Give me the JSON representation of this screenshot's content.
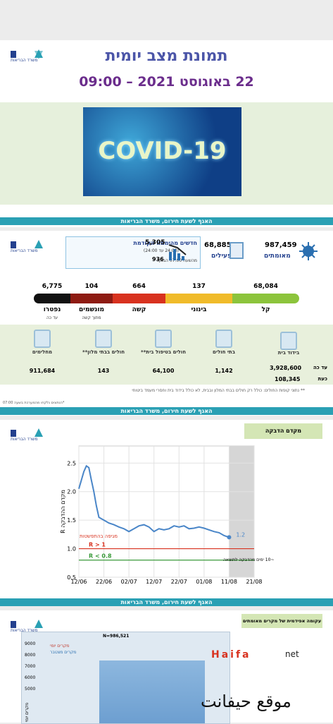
{
  "slide1": {
    "title": "תמונת מצב יומית",
    "date": "22 באוגוסט 2021 – 09:00",
    "image_text": "COVID-19",
    "footer": "האגף לשעת חירום, משרד הבריאות"
  },
  "logo": "משרד הבריאות",
  "slide2": {
    "confirmed": {
      "value": "987,459",
      "label": "מאומתים"
    },
    "active": {
      "value": "68,885",
      "label": "פעילים"
    },
    "new": {
      "value": "5,305",
      "label": "חדשים מהיממה הקודמת",
      "sub": "(24:00 עד 24:00)",
      "morning_value": "936",
      "morning_label": "מהשעה 07:00 הבוקר"
    },
    "severity": [
      {
        "value": "6,775",
        "label": "נפטרו",
        "sub": "עד כה",
        "color": "#111111"
      },
      {
        "value": "104",
        "label": "מונשמים",
        "sub": "מתוך קשה",
        "color": "#8e1b12"
      },
      {
        "value": "664",
        "label": "קשה",
        "color": "#d8321f"
      },
      {
        "value": "137",
        "label": "בינוני",
        "color": "#f0bb2a"
      },
      {
        "value": "68,084",
        "label": "קל",
        "color": "#8cc43c"
      }
    ],
    "isolation": {
      "label": "בידוד בית",
      "total_label": "עד כה",
      "total": "3,928,600",
      "now_label": "כעת",
      "now": "108,345"
    },
    "places": [
      {
        "label": "בתי חולים",
        "value": "1,142"
      },
      {
        "label": "חולים בטיפול בית**",
        "value": "64,100"
      },
      {
        "label": "חולים בבתי מלון**",
        "value": "143"
      },
      {
        "label": "מחלימים",
        "value": "911,684"
      }
    ],
    "note": "** נתוני קופות החולים: כולל רק חולים בבתי המלון ובבית, לא כולל בידוד בית וחסרי מעמד ביטוחי",
    "footnote": "*הנתונים נלקחו מהמערכת בשעה 07:00",
    "footer": "האגף לשעת חירום, משרד הבריאות"
  },
  "slide3": {
    "header": "מקדם הדבקה",
    "footer": "האגף לשעת חירום, משרד הבריאות",
    "chart": {
      "type": "line",
      "ylabel": "מקדם ההדבקה R",
      "x": [
        "12/06",
        "14/06",
        "15/06",
        "16/06",
        "17/06",
        "18/06",
        "19/06",
        "20/06",
        "22/06",
        "24/06",
        "26/06",
        "28/06",
        "30/06",
        "02/07",
        "04/07",
        "06/07",
        "08/07",
        "10/07",
        "12/07",
        "14/07",
        "16/07",
        "18/07",
        "20/07",
        "22/07",
        "24/07",
        "26/07",
        "28/07",
        "30/07",
        "01/08",
        "03/08",
        "05/08",
        "07/08",
        "09/08",
        "11/08"
      ],
      "series": [
        {
          "color": "#4a86c8",
          "values": [
            2.05,
            2.35,
            2.45,
            2.42,
            2.2,
            2.0,
            1.75,
            1.55,
            1.5,
            1.45,
            1.42,
            1.38,
            1.35,
            1.3,
            1.35,
            1.4,
            1.42,
            1.38,
            1.3,
            1.35,
            1.33,
            1.35,
            1.4,
            1.38,
            1.4,
            1.35,
            1.36,
            1.38,
            1.36,
            1.33,
            1.3,
            1.28,
            1.23,
            1.2
          ]
        }
      ],
      "last_label": "1.2",
      "xlim": [
        "12/06",
        "21/08"
      ],
      "xticks": [
        "12/06",
        "22/06",
        "02/07",
        "12/07",
        "22/07",
        "01/08",
        "11/08",
        "21/08"
      ],
      "ylim": [
        0.5,
        2.8
      ],
      "yticks": [
        {
          "value": 0.5,
          "label": "0.5"
        },
        {
          "value": 1,
          "label": "1.0"
        },
        1.5,
        {
          "value": 2,
          "label": "2.0"
        },
        2.5
      ],
      "thresholds": [
        {
          "value": 1,
          "label": "R > 1",
          "color": "#d8321f"
        },
        {
          "value": 0.8,
          "label": "R < 0.8",
          "color": "#3a9a3a"
        }
      ],
      "annotation": "מגיפה בהתפשטות",
      "forecast": {
        "from": "11/08",
        "to": "21/08",
        "label": "~10 ימים מהדבקה לתוצאה"
      }
    }
  },
  "slide4": {
    "header": "עקומה אפידמית של מקרים מאומתים",
    "subtitle": "N=986,521",
    "legend": [
      "מקרים יומי",
      "מקרים מצטבר"
    ],
    "yticks": [
      "9000",
      "8000",
      "7000",
      "6000",
      "5000"
    ],
    "ylabel": "מקרים יומי"
  },
  "watermark": {
    "brand": "Haifa",
    "suffix": "net",
    "arabic": "موقع حيفانت"
  }
}
